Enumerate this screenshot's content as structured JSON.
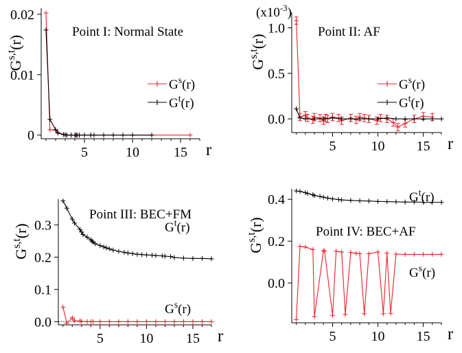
{
  "colors": {
    "singlet": "#e8202a",
    "triplet": "#000000"
  },
  "chart_data": [
    {
      "type": "line",
      "title": "Point I: Normal State",
      "xlabel": "r",
      "ylabel": "G^{s,t}(r)",
      "ylabel_main": "G",
      "ylabel_sup": "s,t",
      "ylabel_tail": "(r)",
      "scale_note": "",
      "xlim": [
        0.5,
        17
      ],
      "ylim": [
        -0.0006,
        0.021
      ],
      "xticks": [
        5,
        10,
        15
      ],
      "yticks": [
        0,
        0.01,
        0.02
      ],
      "ytick_labels": [
        "0",
        "0.01",
        "0.02"
      ],
      "legend": {
        "position": "right",
        "entries": [
          {
            "series": 0,
            "main": "G",
            "sup": "s",
            "tail": "(r)"
          },
          {
            "series": 1,
            "main": "G",
            "sup": "t",
            "tail": "(r)"
          }
        ]
      },
      "series": [
        {
          "name": "Gˢ(r)",
          "color": "#e8202a",
          "x": [
            1,
            1.41,
            2,
            2.24,
            2.83,
            3,
            3.16,
            3.61,
            4,
            4.12,
            4.24,
            4.47,
            5,
            5.66,
            6,
            7,
            8,
            9,
            10,
            12,
            16
          ],
          "y": [
            0.0202,
            0.0009,
            0.0008,
            0.0003,
            0.0001,
            5e-05,
            0,
            0,
            0,
            0,
            0,
            0,
            0,
            0,
            0,
            0,
            0,
            0,
            0,
            0,
            0
          ]
        },
        {
          "name": "Gᵗ(r)",
          "color": "#000000",
          "x": [
            1,
            1.41,
            2,
            2.24,
            2.83,
            3,
            3.16,
            3.61,
            4,
            4.12,
            4.24,
            4.47,
            5,
            5.66,
            6,
            7,
            8,
            9,
            10,
            12
          ],
          "y": [
            0.0174,
            0.0026,
            0.0009,
            0.0004,
            0.0001,
            5e-05,
            0,
            0,
            0,
            0,
            0,
            0,
            0,
            0,
            0,
            0,
            0,
            0,
            0,
            0
          ]
        }
      ]
    },
    {
      "type": "line",
      "title": "Point II: AF",
      "xlabel": "r",
      "ylabel": "G^{s,t}(r)",
      "ylabel_main": "G",
      "ylabel_sup": "s,t",
      "ylabel_tail": "(r)",
      "scale_note": "(x10",
      "scale_note_sup": "-3",
      "scale_note_tail": ")",
      "xlim": [
        0.5,
        17
      ],
      "ylim": [
        -0.00015,
        0.00117
      ],
      "xticks": [
        5,
        10,
        15
      ],
      "yticks": [
        0,
        0.0005,
        0.001
      ],
      "ytick_labels": [
        "0.0",
        "0.5",
        "1.0"
      ],
      "legend": {
        "position": "right",
        "entries": [
          {
            "series": 0,
            "main": "G",
            "sup": "s",
            "tail": "(r)"
          },
          {
            "series": 1,
            "main": "G",
            "sup": "t",
            "tail": "(r)"
          }
        ]
      },
      "series": [
        {
          "name": "Gˢ(r)",
          "color": "#e8202a",
          "errorbars": true,
          "x": [
            1,
            1.41,
            2,
            2.24,
            2.83,
            3,
            3.61,
            4,
            4.24,
            4.47,
            5,
            5.66,
            6,
            7,
            7.6,
            8,
            8.5,
            9,
            9.9,
            10.3,
            11,
            11.7,
            12.2,
            13,
            14,
            15,
            16
          ],
          "y": [
            0.00108,
            2e-05,
            4e-05,
            1e-05,
            -1e-05,
            2e-05,
            1e-05,
            -2e-05,
            1e-05,
            0,
            2e-05,
            1e-05,
            -2e-05,
            1e-05,
            -1e-05,
            2e-05,
            1e-05,
            0,
            -2e-05,
            1e-05,
            0,
            -4e-05,
            -9e-05,
            -5e-05,
            0,
            3e-05,
            2e-05
          ],
          "err": 4e-05
        },
        {
          "name": "Gᵗ(r)",
          "color": "#000000",
          "x": [
            1,
            1.41,
            2,
            3,
            4,
            5,
            6,
            7,
            8,
            9,
            10,
            11,
            12,
            13,
            14,
            15,
            16,
            17
          ],
          "y": [
            0.00011,
            1e-05,
            0,
            0,
            0,
            1e-05,
            0,
            0,
            0,
            0,
            0,
            1e-05,
            0,
            0,
            0,
            0,
            0,
            0
          ]
        }
      ]
    },
    {
      "type": "line",
      "title": "Point III: BEC+FM",
      "xlabel": "r",
      "ylabel": "G^{s,t}(r)",
      "ylabel_main": "G",
      "ylabel_sup": "s,t",
      "ylabel_tail": "(r)",
      "scale_note": "",
      "xlim": [
        0.5,
        17
      ],
      "ylim": [
        -0.01,
        0.38
      ],
      "xticks": [
        5,
        10,
        15
      ],
      "yticks": [
        0,
        0.1,
        0.2,
        0.3
      ],
      "ytick_labels": [
        "0.0",
        "0.1",
        "0.2",
        "0.3"
      ],
      "zero_line": true,
      "labels": [
        {
          "series": 1,
          "main": "G",
          "sup": "t",
          "tail": "(r)",
          "at": "upper"
        },
        {
          "series": 0,
          "main": "G",
          "sup": "s",
          "tail": "(r)",
          "at": "lower"
        }
      ],
      "series": [
        {
          "name": "Gˢ(r)",
          "color": "#e8202a",
          "x": [
            1,
            1.41,
            2,
            2.24,
            2.83,
            3,
            3.61,
            4,
            4.24,
            5,
            6,
            7,
            8,
            9,
            10,
            11,
            12,
            13,
            14,
            15,
            16,
            17
          ],
          "y": [
            0.045,
            -0.005,
            0.012,
            0.003,
            0.002,
            0.001,
            0,
            0,
            0,
            0,
            0,
            0,
            0,
            0,
            0,
            0,
            0,
            0,
            0,
            0,
            0,
            0
          ]
        },
        {
          "name": "Gᵗ(r)",
          "color": "#000000",
          "x": [
            1,
            1.41,
            2,
            2.24,
            2.83,
            3,
            3.16,
            3.61,
            4,
            4.12,
            4.24,
            4.47,
            5,
            5.39,
            5.66,
            6,
            6.4,
            7,
            7.6,
            8,
            8.5,
            9,
            9.5,
            10,
            10.6,
            11,
            11.7,
            12,
            12.6,
            13,
            14,
            15,
            16,
            17
          ],
          "y": [
            0.375,
            0.352,
            0.318,
            0.306,
            0.286,
            0.278,
            0.27,
            0.262,
            0.254,
            0.25,
            0.247,
            0.242,
            0.236,
            0.232,
            0.229,
            0.226,
            0.222,
            0.218,
            0.215,
            0.213,
            0.211,
            0.209,
            0.208,
            0.207,
            0.206,
            0.205,
            0.204,
            0.203,
            0.202,
            0.199,
            0.197,
            0.196,
            0.196,
            0.195
          ]
        }
      ]
    },
    {
      "type": "line",
      "title": "Point IV: BEC+AF",
      "xlabel": "r",
      "ylabel": "G^{s,t}(r)",
      "ylabel_main": "G",
      "ylabel_sup": "s,t",
      "ylabel_tail": "(r)",
      "scale_note": "",
      "xlim": [
        0.5,
        17
      ],
      "ylim": [
        -0.19,
        0.45
      ],
      "xticks": [
        5,
        10,
        15
      ],
      "yticks": [
        0,
        0.2,
        0.4
      ],
      "ytick_labels": [
        "0.0",
        "0.2",
        "0.4"
      ],
      "labels": [
        {
          "series": 1,
          "main": "G",
          "sup": "t",
          "tail": "(r)",
          "at": "upper"
        },
        {
          "series": 0,
          "main": "G",
          "sup": "s",
          "tail": "(r)",
          "at": "lower"
        }
      ],
      "series": [
        {
          "name": "Gˢ(r)",
          "color": "#e8202a",
          "x": [
            1,
            1.41,
            2,
            2.83,
            3,
            4,
            4.12,
            5,
            5.39,
            6,
            6.4,
            7,
            7.6,
            8,
            8.5,
            9,
            10,
            10.6,
            11,
            11.4,
            12,
            13,
            14,
            15,
            16,
            17
          ],
          "y": [
            -0.175,
            0.175,
            0.172,
            0.16,
            -0.16,
            0.155,
            0.152,
            -0.155,
            0.152,
            0.148,
            -0.15,
            0.146,
            0.142,
            0.14,
            -0.147,
            0.14,
            0.148,
            -0.147,
            0.143,
            -0.145,
            0.138,
            0.137,
            0.137,
            0.137,
            0.137,
            0.137
          ]
        },
        {
          "name": "Gᵗ(r)",
          "color": "#000000",
          "x": [
            1,
            1.41,
            2,
            2.24,
            2.83,
            3,
            3.61,
            4,
            4.47,
            5,
            5.66,
            6,
            7,
            8,
            9,
            10,
            11,
            12,
            13,
            14,
            15,
            16,
            17
          ],
          "y": [
            0.44,
            0.438,
            0.432,
            0.428,
            0.422,
            0.418,
            0.414,
            0.41,
            0.406,
            0.402,
            0.399,
            0.397,
            0.395,
            0.393,
            0.392,
            0.39,
            0.389,
            0.388,
            0.387,
            0.387,
            0.386,
            0.386,
            0.386
          ]
        }
      ]
    }
  ]
}
